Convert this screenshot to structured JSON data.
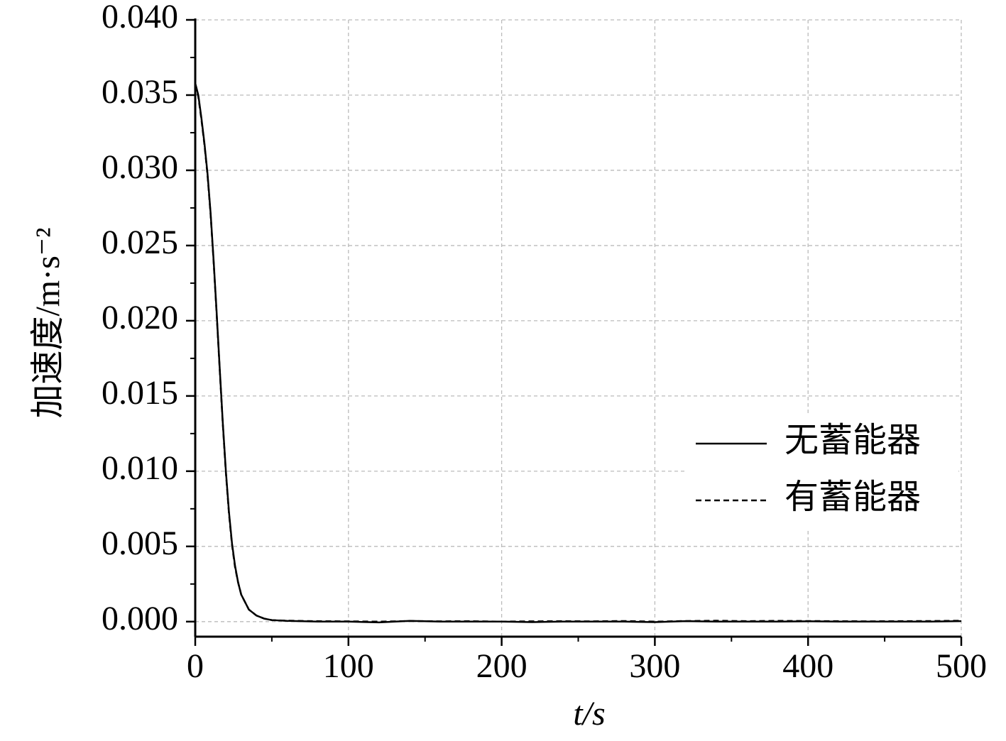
{
  "chart_data": {
    "type": "line",
    "x_label": "t/s",
    "y_label": "加速度/m·s⁻²",
    "x": [
      0,
      2,
      4,
      6,
      8,
      10,
      12,
      14,
      16,
      18,
      20,
      22,
      24,
      26,
      28,
      30,
      35,
      40,
      45,
      50,
      60,
      80,
      100,
      120,
      140,
      160,
      180,
      200,
      220,
      240,
      260,
      280,
      300,
      320,
      340,
      360,
      380,
      400,
      420,
      440,
      460,
      480,
      500
    ],
    "series": [
      {
        "name": "无蓄能器",
        "color": "#000000",
        "dash": false,
        "values": [
          0.0358,
          0.035,
          0.0335,
          0.0318,
          0.0298,
          0.0272,
          0.024,
          0.0205,
          0.0168,
          0.0132,
          0.01,
          0.0073,
          0.0052,
          0.0037,
          0.0026,
          0.0018,
          0.0008,
          0.0004,
          0.0002,
          0.0001,
          5e-05,
          0,
          0,
          -5e-05,
          5e-05,
          0,
          0,
          0,
          -3e-05,
          0,
          0,
          0,
          -3e-05,
          3e-05,
          0,
          0,
          0,
          2e-05,
          0,
          0,
          0,
          0,
          3e-05
        ]
      },
      {
        "name": "有蓄能器",
        "color": "#000000",
        "dash": true,
        "values": [
          0.0357,
          0.0349,
          0.0334,
          0.0317,
          0.0297,
          0.0271,
          0.0239,
          0.0204,
          0.0167,
          0.0131,
          0.0099,
          0.0072,
          0.0051,
          0.0036,
          0.0026,
          0.0018,
          0.0008,
          0.0004,
          0.0002,
          0.0001,
          6e-05,
          3e-05,
          2e-05,
          0,
          4e-05,
          2e-05,
          3e-05,
          0,
          2e-05,
          3e-05,
          2e-05,
          4e-05,
          0,
          4e-05,
          6e-05,
          3e-05,
          5e-05,
          4e-05,
          3e-05,
          2e-05,
          3e-05,
          4e-05,
          6e-05
        ]
      }
    ],
    "xlim": [
      0,
      500
    ],
    "xticks": [
      0,
      100,
      200,
      300,
      400,
      500
    ],
    "ylim": [
      -0.001,
      0.04
    ],
    "yticks": [
      {
        "value": 0,
        "label": "0.000"
      },
      0.005,
      {
        "value": 0.01,
        "label": "0.010"
      },
      0.015,
      {
        "value": 0.02,
        "label": "0.020"
      },
      0.025,
      {
        "value": 0.03,
        "label": "0.030"
      },
      0.035,
      {
        "value": 0.04,
        "label": "0.040"
      }
    ],
    "grid": true,
    "legend": "center right"
  }
}
